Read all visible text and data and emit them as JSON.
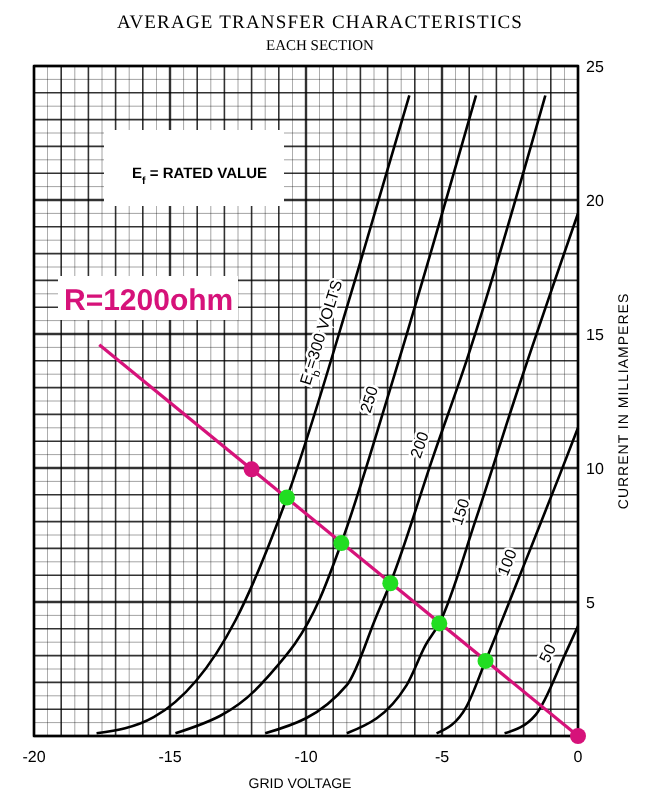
{
  "chart_data": {
    "type": "line",
    "title": "AVERAGE TRANSFER CHARACTERISTICS",
    "subtitle": "EACH SECTION",
    "xlabel": "GRID VOLTAGE",
    "ylabel": "CURRENT IN MILLIAMPERES",
    "xlim": [
      -20,
      0
    ],
    "xticks": [
      -20,
      -15,
      -10,
      -5,
      0
    ],
    "ylim": [
      0,
      25
    ],
    "yticks": [
      5,
      10,
      15,
      20,
      25
    ],
    "grid": true,
    "legend": false,
    "annotations": [
      "E$_{f}$ = RATED VALUE"
    ],
    "series": [
      {
        "name": "E$_{b}$=300 VOLTS",
        "color": "#000000",
        "x": [
          -17.7,
          -15.6,
          -12.6,
          -10.7,
          -8.2,
          -6.2
        ],
        "values": [
          0.1,
          0.7,
          4.3,
          8.9,
          17,
          23.9
        ]
      },
      {
        "name": "250",
        "color": "#000000",
        "x": [
          -14.8,
          -11.5,
          -9.5,
          -8.7,
          -6.8,
          -3.75
        ],
        "values": [
          0.1,
          2.1,
          5.1,
          7.2,
          13.3,
          23.9
        ]
      },
      {
        "name": "200",
        "color": "#000000",
        "x": [
          -11.5,
          -8.5,
          -7.4,
          -6.9,
          -5.3,
          -4.1,
          -1.2
        ],
        "values": [
          0.1,
          1.9,
          4.5,
          5.7,
          10.5,
          14,
          23.9
        ]
      },
      {
        "name": "150",
        "color": "#000000",
        "x": [
          -8.5,
          -6.3,
          -5.6,
          -5.1,
          -3.75,
          -2.35,
          0
        ],
        "values": [
          0.1,
          1.9,
          3.4,
          4.2,
          8.1,
          12.5,
          19.5
        ]
      },
      {
        "name": "100",
        "color": "#000000",
        "x": [
          -5.2,
          -4.1,
          -3.4,
          -1.9,
          -0.65,
          0
        ],
        "values": [
          0.1,
          1.1,
          2.8,
          6.6,
          9.8,
          11.5
        ]
      },
      {
        "name": "50",
        "color": "#000000",
        "x": [
          -2.7,
          -1.55,
          -0.45,
          0
        ],
        "values": [
          0.1,
          0.8,
          3.1,
          4.1
        ]
      },
      {
        "name": "R=1200ohm",
        "color": "#d6127a",
        "x": [
          -17.6,
          0
        ],
        "values": [
          14.6,
          0
        ]
      },
      {
        "type": "scatter",
        "color": "#d6127a",
        "marker": "circle",
        "x": [
          -12,
          0
        ],
        "values": [
          9.95,
          0
        ]
      },
      {
        "type": "scatter",
        "color": "#22dd22",
        "marker": "circle",
        "x": [
          -10.7,
          -8.7,
          -6.9,
          -5.1,
          -3.4
        ],
        "values": [
          8.9,
          7.2,
          5.7,
          4.2,
          2.8
        ]
      }
    ]
  }
}
